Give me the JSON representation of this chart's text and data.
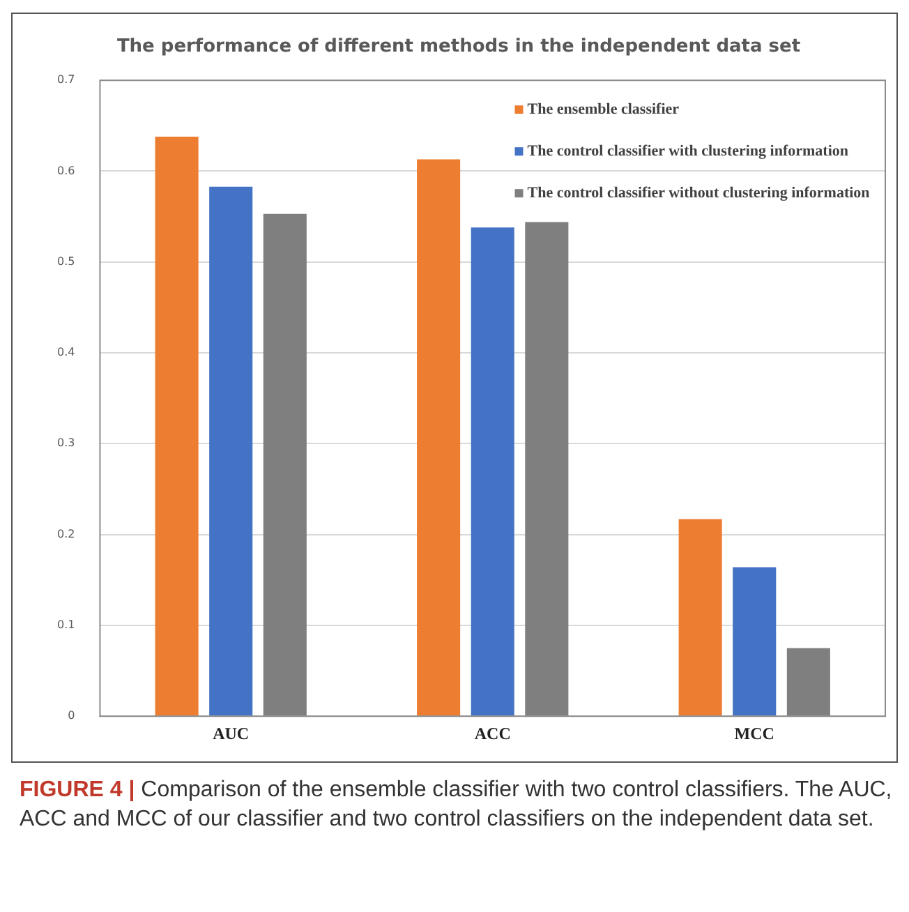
{
  "chart_data": {
    "type": "bar",
    "title": "The performance of different methods in the independent data set",
    "categories": [
      "AUC",
      "ACC",
      "MCC"
    ],
    "series": [
      {
        "name": "The ensemble classifier",
        "color": "#ed7d31",
        "values": [
          0.638,
          0.613,
          0.217
        ]
      },
      {
        "name": "The control classifier with clustering information",
        "color": "#4472c4",
        "values": [
          0.583,
          0.538,
          0.164
        ]
      },
      {
        "name": "The control classifier without clustering information",
        "color": "#7f7f7f",
        "values": [
          0.553,
          0.544,
          0.075
        ]
      }
    ],
    "ylim": [
      0,
      0.7
    ],
    "yticks": [
      0,
      0.1,
      0.2,
      0.3,
      0.4,
      0.5,
      0.6,
      0.7
    ],
    "grid": "y",
    "legend": "top right",
    "annotations": [
      "FIGURE 4 | Comparison of the ensemble classifier with two control classifiers. The AUC, ACC and MCC of our classifier and two control classifiers on the independent data set."
    ]
  }
}
